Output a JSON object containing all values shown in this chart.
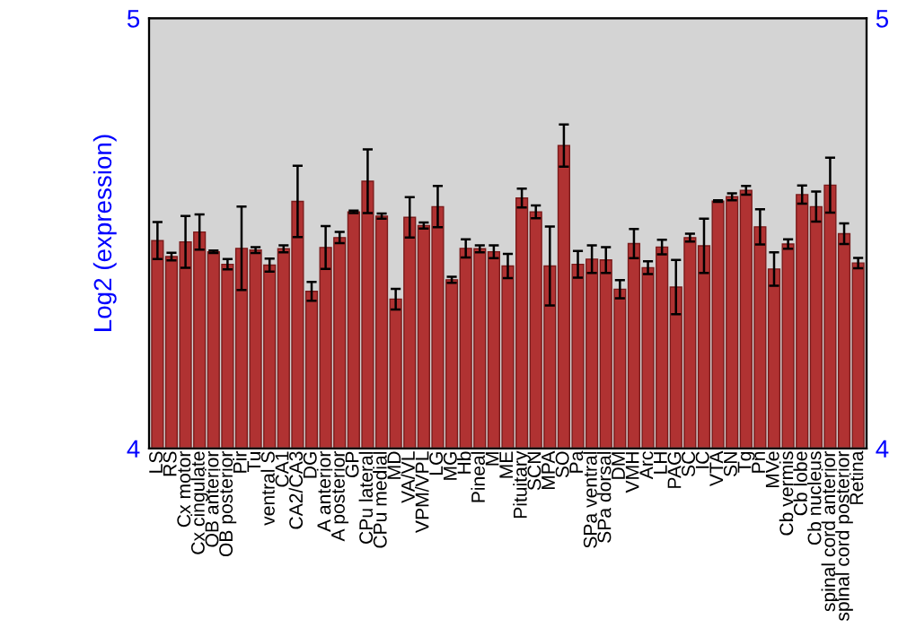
{
  "chart_data": {
    "type": "bar",
    "ylabel": "Log2 (expression)",
    "categories": [
      "LS",
      "RS",
      "Cx motor",
      "Cx cingulate",
      "OB anterior",
      "OB posterior",
      "Pir",
      "Tu",
      "ventral S",
      "CA1",
      "CA2/CA3",
      "DG",
      "A anterior",
      "A posterior",
      "GP",
      "CPu lateral",
      "CPu medial",
      "MD",
      "VA/VL",
      "VPM/VPL",
      "LG",
      "MG",
      "Hb",
      "Pineal",
      "M",
      "ME",
      "Pituitary",
      "SCN",
      "MPA",
      "SO",
      "Pa",
      "SPa ventral",
      "SPa dorsal",
      "DM",
      "VMH",
      "Arc",
      "LH",
      "PAG",
      "SC",
      "IC",
      "VTA",
      "SN",
      "Tg",
      "Pn",
      "MVe",
      "Cb vermis",
      "Cb lobe",
      "Cb nucleus",
      "spinal cord anterior",
      "spinal cord posterior",
      "Retina"
    ],
    "series": [
      {
        "color": "#b03232",
        "values": [
          4.483,
          4.446,
          4.48,
          4.503,
          4.457,
          4.428,
          4.465,
          4.461,
          4.426,
          4.464,
          4.574,
          4.365,
          4.467,
          4.49,
          4.55,
          4.621,
          4.54,
          4.347,
          4.537,
          4.518,
          4.562,
          4.392,
          4.465,
          4.464,
          4.457,
          4.424,
          4.582,
          4.55,
          4.424,
          4.704,
          4.428,
          4.44,
          4.438,
          4.37,
          4.476,
          4.42,
          4.468,
          4.375,
          4.49,
          4.471,
          4.575,
          4.585,
          4.6,
          4.515,
          4.417,
          4.475,
          4.59,
          4.562,
          4.612,
          4.499,
          4.431
        ],
        "errors": [
          0.043,
          0.009,
          0.06,
          0.041,
          0.003,
          0.012,
          0.097,
          0.007,
          0.015,
          0.008,
          0.083,
          0.022,
          0.05,
          0.013,
          0.003,
          0.074,
          0.006,
          0.024,
          0.047,
          0.007,
          0.048,
          0.007,
          0.021,
          0.008,
          0.015,
          0.028,
          0.022,
          0.015,
          0.092,
          0.049,
          0.031,
          0.032,
          0.03,
          0.021,
          0.034,
          0.015,
          0.017,
          0.063,
          0.009,
          0.063,
          0.002,
          0.008,
          0.01,
          0.041,
          0.039,
          0.011,
          0.021,
          0.035,
          0.064,
          0.024,
          0.012
        ]
      }
    ],
    "ylim": [
      4,
      5
    ],
    "yticks": [
      4,
      5
    ],
    "y2lim": [
      4,
      5
    ],
    "y2ticks": [
      4,
      5
    ],
    "grid": false
  }
}
